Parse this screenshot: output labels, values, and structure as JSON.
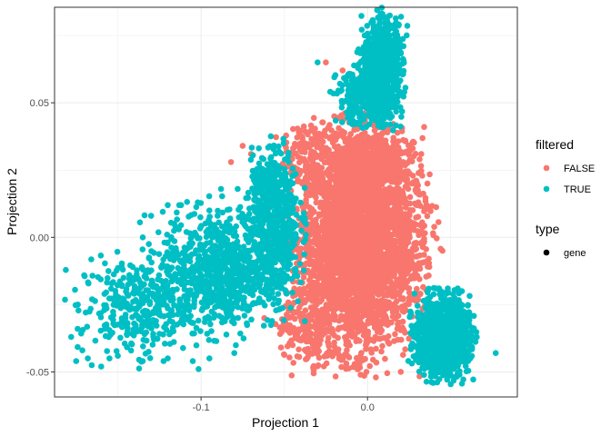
{
  "chart_data": {
    "type": "scatter",
    "xlabel": "Projection 1",
    "ylabel": "Projection 2",
    "xlim": [
      -0.188,
      0.09
    ],
    "ylim": [
      -0.0593,
      0.0855
    ],
    "x_ticks": [
      -0.1,
      0.0
    ],
    "x_tick_labels": [
      "-0.1",
      "0.0"
    ],
    "y_ticks": [
      -0.05,
      0.0,
      0.05
    ],
    "y_tick_labels": [
      "-0.05",
      "0.00",
      "0.05"
    ],
    "grid": true,
    "legend_placement": "right",
    "legends": [
      {
        "title": "filtered",
        "entries": [
          {
            "label": "FALSE",
            "color": "#F8766D"
          },
          {
            "label": "TRUE",
            "color": "#00BFC4"
          }
        ]
      },
      {
        "title": "type",
        "entries": [
          {
            "label": "gene",
            "color": "#000000"
          }
        ]
      }
    ],
    "series": [
      {
        "filtered": "FALSE",
        "color": "#F8766D",
        "clusters": [
          {
            "cx": -0.007,
            "cy": -0.003,
            "sx": 0.017,
            "sy": 0.019,
            "n": 3200
          },
          {
            "cx": 0.004,
            "cy": 0.028,
            "sx": 0.011,
            "sy": 0.006,
            "n": 400
          },
          {
            "cx": -0.033,
            "cy": 0.03,
            "sx": 0.01,
            "sy": 0.006,
            "n": 150
          },
          {
            "cx": -0.038,
            "cy": -0.033,
            "sx": 0.008,
            "sy": 0.007,
            "n": 140
          },
          {
            "cx": 0.025,
            "cy": 0.0,
            "sx": 0.008,
            "sy": 0.015,
            "n": 160
          }
        ],
        "extra_points": [
          [
            -0.075,
            0.034
          ],
          [
            -0.082,
            0.028
          ],
          [
            -0.07,
            0.031
          ],
          [
            -0.025,
            0.065
          ],
          [
            -0.015,
            0.062
          ],
          [
            0.034,
            0.041
          ],
          [
            0.036,
            0.02
          ],
          [
            0.035,
            0.011
          ],
          [
            0.03,
            -0.007
          ],
          [
            0.02,
            -0.05
          ],
          [
            0.005,
            -0.052
          ],
          [
            -0.012,
            -0.044
          ],
          [
            -0.062,
            -0.03
          ],
          [
            -0.02,
            0.045
          ],
          [
            0.0,
            0.045
          ],
          [
            0.045,
            -0.005
          ]
        ]
      },
      {
        "filtered": "TRUE",
        "color": "#00BFC4",
        "clusters": [
          {
            "cx": 0.009,
            "cy": 0.063,
            "sx": 0.006,
            "sy": 0.009,
            "n": 700
          },
          {
            "cx": -0.002,
            "cy": 0.052,
            "sx": 0.008,
            "sy": 0.005,
            "n": 300
          },
          {
            "cx": 0.045,
            "cy": -0.037,
            "sx": 0.008,
            "sy": 0.007,
            "n": 1200
          },
          {
            "cx": -0.085,
            "cy": -0.012,
            "sx": 0.02,
            "sy": 0.011,
            "n": 900
          },
          {
            "cx": -0.14,
            "cy": -0.026,
            "sx": 0.017,
            "sy": 0.009,
            "n": 320
          },
          {
            "cx": -0.055,
            "cy": 0.008,
            "sx": 0.007,
            "sy": 0.012,
            "n": 450
          },
          {
            "cx": -0.06,
            "cy": 0.02,
            "sx": 0.005,
            "sy": 0.004,
            "n": 90
          }
        ],
        "extra_points": [
          [
            -0.178,
            -0.037
          ],
          [
            -0.175,
            -0.046
          ],
          [
            -0.168,
            -0.045
          ],
          [
            -0.16,
            -0.048
          ],
          [
            -0.155,
            -0.045
          ],
          [
            -0.15,
            -0.044
          ],
          [
            -0.135,
            -0.046
          ],
          [
            -0.12,
            -0.045
          ],
          [
            -0.105,
            -0.046
          ],
          [
            -0.095,
            -0.045
          ],
          [
            -0.08,
            -0.043
          ],
          [
            -0.135,
            0.0
          ],
          [
            -0.13,
            0.008
          ],
          [
            -0.12,
            0.012
          ],
          [
            -0.112,
            0.012
          ],
          [
            -0.102,
            0.013
          ],
          [
            -0.095,
            0.01
          ],
          [
            -0.088,
            0.018
          ],
          [
            -0.078,
            0.018
          ],
          [
            0.077,
            -0.043
          ],
          [
            0.009,
            0.083
          ],
          [
            0.012,
            0.08
          ],
          [
            -0.03,
            0.065
          ]
        ]
      }
    ]
  }
}
